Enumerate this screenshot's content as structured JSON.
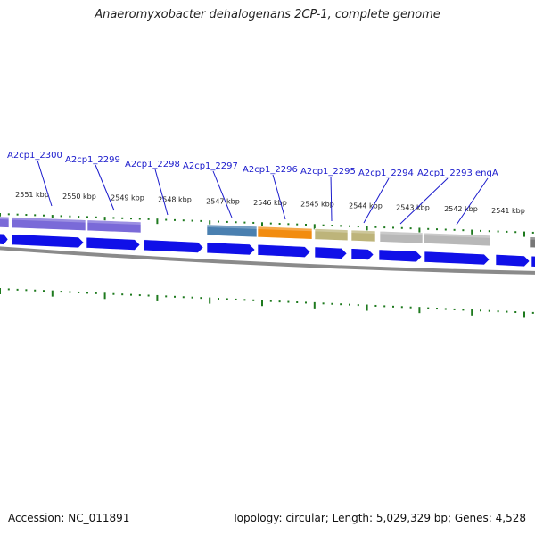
{
  "title": "Anaeromyxobacter dehalogenans 2CP-1, complete genome",
  "footer": {
    "accession": "Accession: NC_011891",
    "summary": "Topology: circular; Length: 5,029,329 bp; Genes: 4,528"
  },
  "colors": {
    "cds": "#1010e8",
    "backbone": "#8a8a8a",
    "tick": "#1e7a1e",
    "label": "#1a1acc",
    "purple": "#7a6ad8",
    "blue_grey": "#4a80b0",
    "orange": "#f28c10",
    "khaki": "#bdb47a",
    "grey": "#b8b8b8",
    "dark_grey": "#777777"
  },
  "kbp_ticks": [
    {
      "label": "2551 kbp"
    },
    {
      "label": "2550 kbp"
    },
    {
      "label": "2549 kbp"
    },
    {
      "label": "2548 kbp"
    },
    {
      "label": "2547 kbp"
    },
    {
      "label": "2546 kbp"
    },
    {
      "label": "2545 kbp"
    },
    {
      "label": "2544 kbp"
    },
    {
      "label": "2543 kbp"
    },
    {
      "label": "2542 kbp"
    },
    {
      "label": "2541 kbp"
    }
  ],
  "gene_labels": [
    {
      "text": "A2cp1_2300"
    },
    {
      "text": "A2cp1_2299"
    },
    {
      "text": "A2cp1_2298"
    },
    {
      "text": "A2cp1_2297"
    },
    {
      "text": "A2cp1_2296"
    },
    {
      "text": "A2cp1_2295"
    },
    {
      "text": "A2cp1_2294"
    },
    {
      "text": "A2cp1_2293"
    },
    {
      "text": "engA"
    }
  ],
  "feature_segments": [
    {
      "color": "purple"
    },
    {
      "color": "purple"
    },
    {
      "color": "purple"
    },
    {
      "color": "blue_grey"
    },
    {
      "color": "orange"
    },
    {
      "color": "khaki"
    },
    {
      "color": "khaki"
    },
    {
      "color": "grey"
    },
    {
      "color": "grey"
    },
    {
      "color": "dark_grey"
    }
  ],
  "cds_arrows": [
    {
      "strand": "+"
    },
    {
      "strand": "+"
    },
    {
      "strand": "+"
    },
    {
      "strand": "+"
    },
    {
      "strand": "+"
    },
    {
      "strand": "+"
    },
    {
      "strand": "+"
    },
    {
      "strand": "+"
    },
    {
      "strand": "+"
    },
    {
      "strand": "+"
    },
    {
      "strand": "+"
    },
    {
      "strand": "+"
    }
  ]
}
